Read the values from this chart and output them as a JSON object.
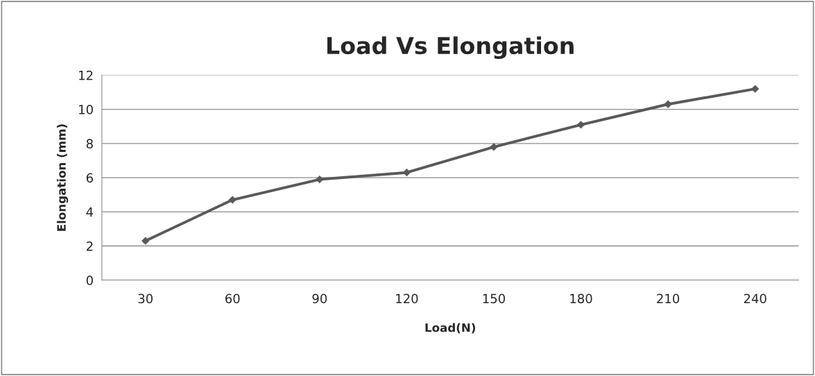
{
  "chart_data": {
    "type": "line",
    "title": "Load Vs Elongation",
    "xlabel": "Load(N)",
    "ylabel": "Elongation (mm)",
    "categories": [
      "30",
      "60",
      "90",
      "120",
      "150",
      "180",
      "210",
      "240"
    ],
    "series": [
      {
        "color": "#595959",
        "values": [
          2.3,
          4.7,
          5.9,
          6.3,
          7.8,
          9.1,
          10.3,
          11.2
        ]
      }
    ],
    "ylim": [
      0,
      12
    ],
    "yticks": [
      0,
      2,
      4,
      6,
      8,
      10,
      12
    ],
    "grid": "y",
    "legend": false,
    "marker": "diamond",
    "line_style": "solid"
  }
}
